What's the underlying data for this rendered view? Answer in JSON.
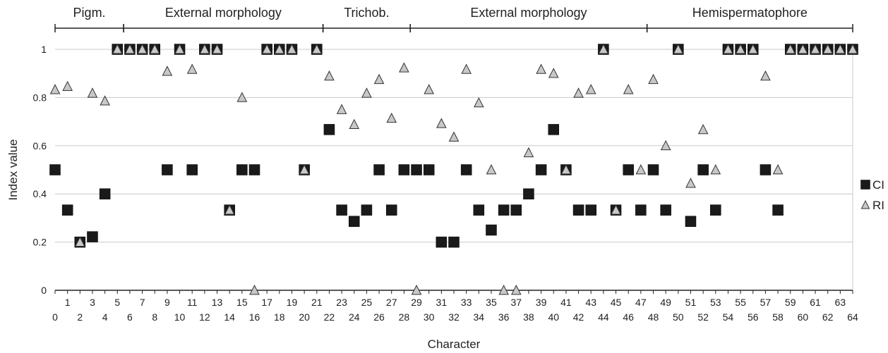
{
  "chart_data": {
    "type": "scatter",
    "xlabel": "Character",
    "ylabel": "Index value",
    "xlim": [
      0,
      64
    ],
    "ylim": [
      0,
      1
    ],
    "y_ticks": [
      "0",
      "0.2",
      "0.4",
      "0.6",
      "0.8",
      "1"
    ],
    "grid": "horizontal",
    "legend_position": "right",
    "groups": [
      {
        "label": "Pigm.",
        "from": 0,
        "to": 5.5
      },
      {
        "label": "External morphology",
        "from": 5.5,
        "to": 21.5
      },
      {
        "label": "Trichob.",
        "from": 21.5,
        "to": 28.5
      },
      {
        "label": "External morphology",
        "from": 28.5,
        "to": 47.5
      },
      {
        "label": "Hemispermatophore",
        "from": 47.5,
        "to": 64
      }
    ],
    "series": [
      {
        "name": "CI",
        "marker": "square",
        "color": "#1a1a1a",
        "points": [
          [
            0,
            0.5
          ],
          [
            1,
            0.333
          ],
          [
            2,
            0.2
          ],
          [
            3,
            0.222
          ],
          [
            4,
            0.4
          ],
          [
            5,
            1
          ],
          [
            6,
            1
          ],
          [
            7,
            1
          ],
          [
            8,
            1
          ],
          [
            9,
            0.5
          ],
          [
            10,
            1
          ],
          [
            11,
            0.5
          ],
          [
            12,
            1
          ],
          [
            13,
            1
          ],
          [
            14,
            0.333
          ],
          [
            15,
            0.5
          ],
          [
            16,
            0.5
          ],
          [
            17,
            1
          ],
          [
            18,
            1
          ],
          [
            19,
            1
          ],
          [
            20,
            0.5
          ],
          [
            21,
            1
          ],
          [
            22,
            0.667
          ],
          [
            23,
            0.333
          ],
          [
            24,
            0.286
          ],
          [
            25,
            0.333
          ],
          [
            26,
            0.5
          ],
          [
            27,
            0.333
          ],
          [
            28,
            0.5
          ],
          [
            29,
            0.5
          ],
          [
            30,
            0.5
          ],
          [
            31,
            0.2
          ],
          [
            32,
            0.2
          ],
          [
            33,
            0.5
          ],
          [
            34,
            0.333
          ],
          [
            35,
            0.25
          ],
          [
            36,
            0.333
          ],
          [
            37,
            0.333
          ],
          [
            38,
            0.4
          ],
          [
            39,
            0.5
          ],
          [
            40,
            0.667
          ],
          [
            41,
            0.5
          ],
          [
            42,
            0.333
          ],
          [
            43,
            0.333
          ],
          [
            44,
            1
          ],
          [
            45,
            0.333
          ],
          [
            46,
            0.5
          ],
          [
            47,
            0.333
          ],
          [
            48,
            0.5
          ],
          [
            49,
            0.333
          ],
          [
            50,
            1
          ],
          [
            51,
            0.286
          ],
          [
            52,
            0.5
          ],
          [
            53,
            0.333
          ],
          [
            54,
            1
          ],
          [
            55,
            1
          ],
          [
            56,
            1
          ],
          [
            57,
            0.5
          ],
          [
            58,
            0.333
          ],
          [
            59,
            1
          ],
          [
            60,
            1
          ],
          [
            61,
            1
          ],
          [
            62,
            1
          ],
          [
            63,
            1
          ],
          [
            64,
            1
          ]
        ]
      },
      {
        "name": "RI",
        "marker": "triangle",
        "color": "#c8c8c8",
        "points": [
          [
            0,
            0.833
          ],
          [
            1,
            0.846
          ],
          [
            2,
            0.2
          ],
          [
            3,
            0.818
          ],
          [
            4,
            0.786
          ],
          [
            5,
            1
          ],
          [
            6,
            1
          ],
          [
            7,
            1
          ],
          [
            8,
            1
          ],
          [
            9,
            0.909
          ],
          [
            10,
            1
          ],
          [
            11,
            0.917
          ],
          [
            12,
            1
          ],
          [
            13,
            1
          ],
          [
            14,
            0.333
          ],
          [
            15,
            0.8
          ],
          [
            16,
            0
          ],
          [
            17,
            1
          ],
          [
            18,
            1
          ],
          [
            19,
            1
          ],
          [
            20,
            0.5
          ],
          [
            21,
            1
          ],
          [
            22,
            0.889
          ],
          [
            23,
            0.75
          ],
          [
            24,
            0.688
          ],
          [
            25,
            0.818
          ],
          [
            26,
            0.875
          ],
          [
            27,
            0.714
          ],
          [
            28,
            0.923
          ],
          [
            29,
            0
          ],
          [
            30,
            0.833
          ],
          [
            31,
            0.692
          ],
          [
            32,
            0.636
          ],
          [
            33,
            0.917
          ],
          [
            34,
            0.778
          ],
          [
            35,
            0.5
          ],
          [
            36,
            0
          ],
          [
            37,
            0
          ],
          [
            38,
            0.571
          ],
          [
            39,
            0.917
          ],
          [
            40,
            0.9
          ],
          [
            41,
            0.5
          ],
          [
            42,
            0.818
          ],
          [
            43,
            0.833
          ],
          [
            44,
            1
          ],
          [
            45,
            0.333
          ],
          [
            46,
            0.833
          ],
          [
            47,
            0.5
          ],
          [
            48,
            0.875
          ],
          [
            49,
            0.6
          ],
          [
            50,
            1
          ],
          [
            51,
            0.444
          ],
          [
            52,
            0.667
          ],
          [
            53,
            0.5
          ],
          [
            54,
            1
          ],
          [
            55,
            1
          ],
          [
            56,
            1
          ],
          [
            57,
            0.889
          ],
          [
            58,
            0.5
          ],
          [
            59,
            1
          ],
          [
            60,
            1
          ],
          [
            61,
            1
          ],
          [
            62,
            1
          ],
          [
            63,
            1
          ],
          [
            64,
            1
          ]
        ]
      }
    ]
  }
}
